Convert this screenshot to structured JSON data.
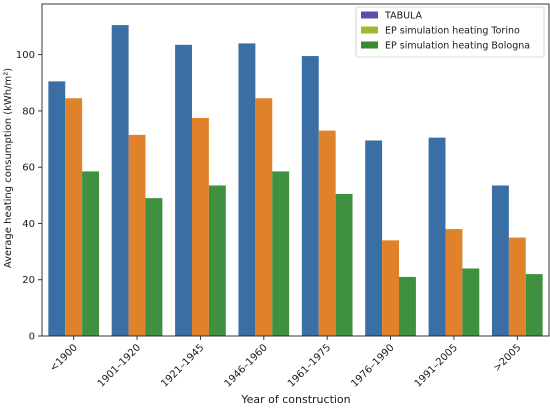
{
  "chart_data": {
    "type": "bar",
    "title": "",
    "xlabel": "Year of construction",
    "ylabel": "Average heating consumption (kWh/m²)",
    "categories": [
      "<1900",
      "1901–1920",
      "1921–1945",
      "1946–1960",
      "1961–1975",
      "1976–1990",
      "1991–2005",
      ">2005"
    ],
    "series": [
      {
        "name": "TABULA",
        "color": "#3a6fa5",
        "values": [
          90.5,
          110.5,
          103.5,
          104,
          99.5,
          69.5,
          70.5,
          53.5
        ]
      },
      {
        "name": "EP simulation heating Torino",
        "color": "#e0822c",
        "values": [
          84.5,
          71.5,
          77.5,
          84.5,
          73,
          34,
          38,
          35
        ]
      },
      {
        "name": "EP simulation heating Bologna",
        "color": "#3f9140",
        "values": [
          58.5,
          49,
          53.5,
          58.5,
          50.5,
          21,
          24,
          22
        ]
      }
    ],
    "ylim": [
      0,
      118
    ],
    "yticks": [
      0,
      20,
      40,
      60,
      80,
      100
    ],
    "grid": false,
    "legend_position": "top-right",
    "legend_swatch_colors": [
      "#5850a8",
      "#9fb830",
      "#3a8a2f"
    ]
  }
}
